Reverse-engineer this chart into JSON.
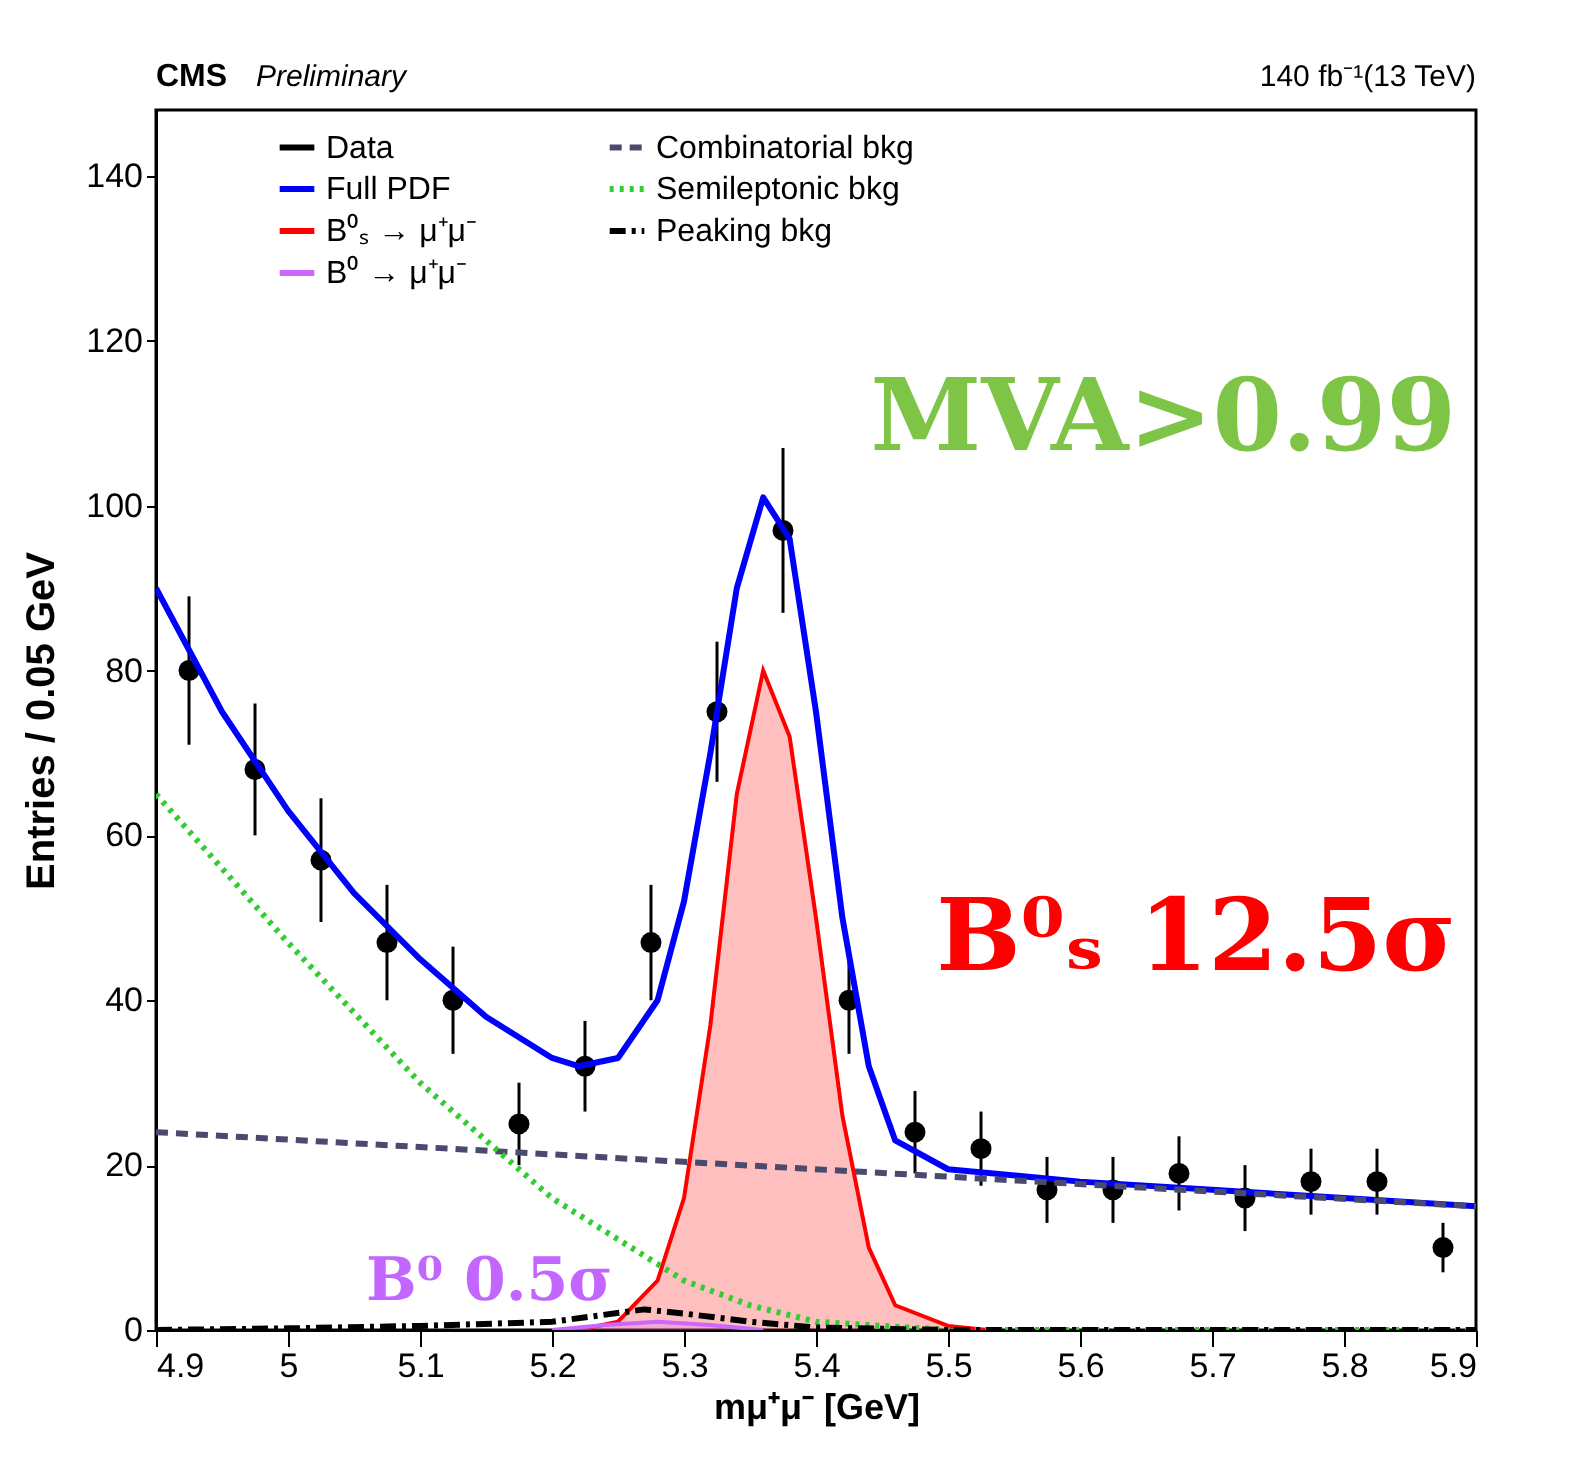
{
  "chart_data": {
    "type": "line",
    "xlabel": "mμ⁺μ⁻ [GeV]",
    "ylabel": "Entries / 0.05 GeV",
    "xlim": [
      4.9,
      5.9
    ],
    "xticks": [
      4.9,
      5,
      5.1,
      5.2,
      5.3,
      5.4,
      5.5,
      5.6,
      5.7,
      5.8,
      5.9
    ],
    "ylim": [
      0,
      148
    ],
    "yticks": [
      0,
      20,
      40,
      60,
      80,
      100,
      120,
      140
    ],
    "grid": false,
    "legend": "top",
    "annotations": [
      "CMS",
      "Preliminary",
      "140 fb⁻¹(13 TeV)",
      "MVA>0.99",
      "B⁰ₛ 12.5σ",
      "B⁰ 0.5σ"
    ],
    "series": [
      {
        "name": "Data",
        "type": "scatter",
        "marker": "circle",
        "color": "#000000",
        "x": [
          4.925,
          4.975,
          5.025,
          5.075,
          5.125,
          5.175,
          5.225,
          5.275,
          5.325,
          5.375,
          5.425,
          5.475,
          5.525,
          5.575,
          5.625,
          5.675,
          5.725,
          5.775,
          5.825,
          5.875
        ],
        "values": [
          80,
          68,
          57,
          47,
          40,
          25,
          32,
          47,
          75,
          97,
          40,
          24,
          22,
          17,
          17,
          19,
          16,
          18,
          18,
          10
        ],
        "errors": [
          9,
          8,
          7.5,
          7,
          6.5,
          5,
          5.5,
          7,
          8.5,
          10,
          6.5,
          5,
          4.5,
          4,
          4,
          4.5,
          4,
          4,
          4,
          3
        ]
      },
      {
        "name": "Full PDF",
        "type": "line",
        "line_style": "solid",
        "color": "#0000ff",
        "x": [
          4.9,
          4.95,
          5.0,
          5.05,
          5.1,
          5.15,
          5.2,
          5.22,
          5.25,
          5.28,
          5.3,
          5.32,
          5.34,
          5.36,
          5.38,
          5.4,
          5.42,
          5.44,
          5.46,
          5.5,
          5.6,
          5.7,
          5.8,
          5.9
        ],
        "values": [
          90,
          75,
          63,
          53,
          45,
          38,
          33,
          32,
          33,
          40,
          52,
          70,
          90,
          101,
          96,
          75,
          50,
          32,
          23,
          19.5,
          18,
          17,
          16,
          15
        ]
      },
      {
        "name": "B⁰ₛ → μ⁺μ⁻",
        "type": "area",
        "color": "#ff0000",
        "x": [
          5.22,
          5.25,
          5.28,
          5.3,
          5.32,
          5.34,
          5.36,
          5.38,
          5.4,
          5.42,
          5.44,
          5.46,
          5.5,
          5.53
        ],
        "values": [
          0,
          1,
          6,
          16,
          37,
          65,
          80,
          72,
          50,
          26,
          10,
          3,
          0.5,
          0
        ]
      },
      {
        "name": "B⁰ → μ⁺μ⁻",
        "type": "area",
        "color": "#cc66ff",
        "x": [
          5.2,
          5.24,
          5.28,
          5.32,
          5.36
        ],
        "values": [
          0,
          0.6,
          1,
          0.6,
          0
        ]
      },
      {
        "name": "Combinatorial bkg",
        "type": "line",
        "line_style": "dashed",
        "color": "#4a4a6e",
        "x": [
          4.9,
          5.9
        ],
        "values": [
          24,
          15
        ]
      },
      {
        "name": "Semileptonic bkg",
        "type": "line",
        "line_style": "dotted",
        "color": "#33cc33",
        "x": [
          4.9,
          5.0,
          5.1,
          5.2,
          5.3,
          5.35,
          5.4,
          5.5,
          5.9
        ],
        "values": [
          65,
          47,
          30,
          16,
          6,
          3,
          1,
          0,
          0
        ]
      },
      {
        "name": "Peaking bkg",
        "type": "line",
        "line_style": "dashdot",
        "color": "#000000",
        "x": [
          4.9,
          5.0,
          5.1,
          5.2,
          5.27,
          5.3,
          5.35,
          5.4,
          5.5,
          5.9
        ],
        "values": [
          0,
          0.2,
          0.5,
          1,
          2.5,
          2,
          1,
          0.3,
          0,
          0
        ]
      }
    ]
  }
}
